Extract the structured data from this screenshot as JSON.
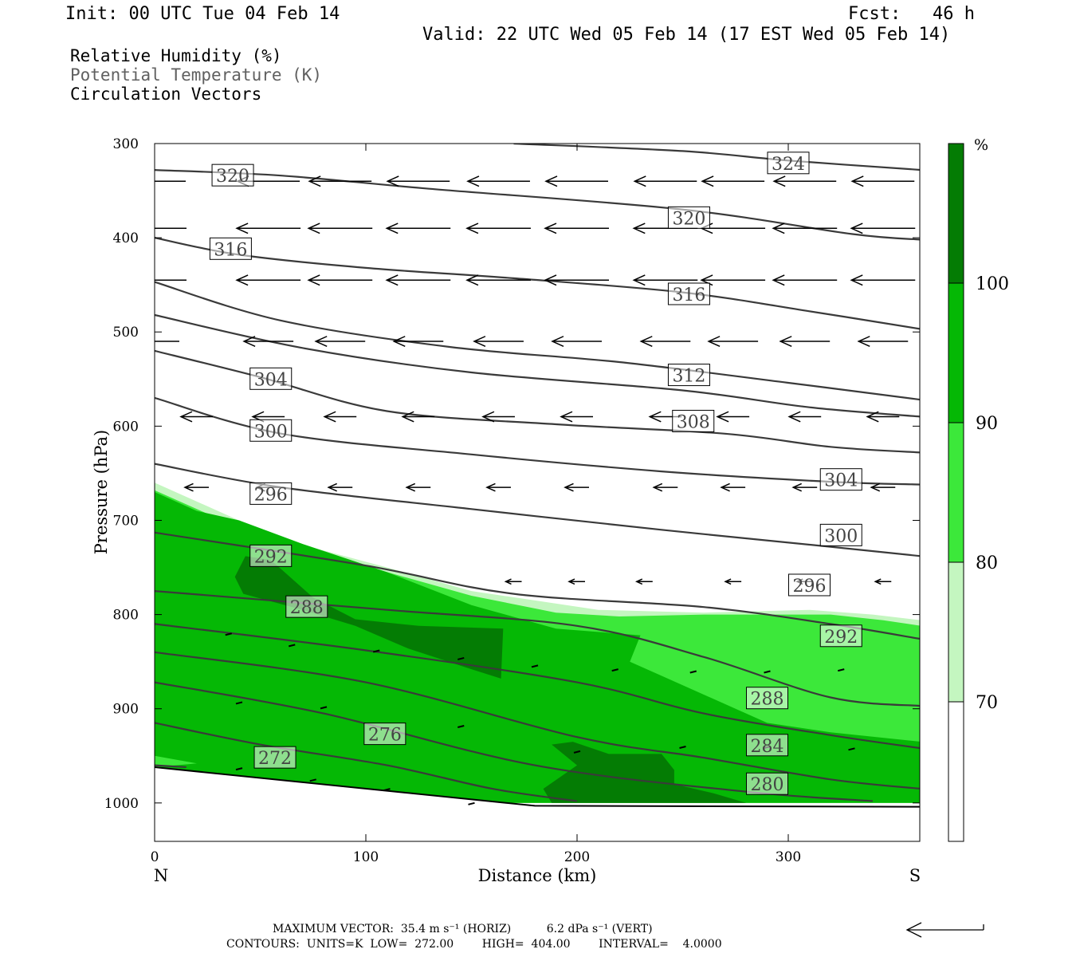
{
  "header": {
    "init": "Init: 00 UTC Tue 04 Feb 14",
    "fcst": "Fcst:   46 h",
    "valid": "Valid: 22 UTC Wed 05 Feb 14 (17 EST Wed 05 Feb 14)"
  },
  "legend": {
    "rh": "Relative Humidity (%)",
    "theta": "Potential Temperature (K)",
    "vectors": "Circulation Vectors"
  },
  "chart_data": {
    "type": "cross-section",
    "xlabel": "Distance (km)",
    "ylabel": "Pressure (hPa)",
    "xlim": [
      0,
      363
    ],
    "ylim": [
      1040,
      300
    ],
    "x_ticks": [
      0,
      100,
      200,
      300
    ],
    "y_ticks": [
      300,
      400,
      500,
      600,
      700,
      800,
      900,
      1000
    ],
    "left_end_label": "N",
    "right_end_label": "S",
    "colorbar": {
      "unit": "%",
      "ticks": [
        70,
        80,
        90,
        100
      ],
      "colors": [
        "#ffffff",
        "#c4f6c0",
        "#3ce83a",
        "#05b805",
        "#047c04"
      ]
    },
    "theta_contours": [
      {
        "label": "324",
        "points": [
          [
            170,
            300
          ],
          [
            250,
            308
          ],
          [
            300,
            318
          ],
          [
            363,
            328
          ]
        ]
      },
      {
        "label": "320",
        "points": [
          [
            0,
            328
          ],
          [
            60,
            334
          ],
          [
            130,
            348
          ],
          [
            250,
            370
          ],
          [
            330,
            396
          ],
          [
            363,
            402
          ]
        ]
      },
      {
        "label": "316",
        "points": [
          [
            0,
            400
          ],
          [
            40,
            418
          ],
          [
            100,
            432
          ],
          [
            170,
            443
          ],
          [
            250,
            458
          ],
          [
            310,
            478
          ],
          [
            363,
            497
          ]
        ]
      },
      {
        "label": "312",
        "points": [
          [
            0,
            447
          ],
          [
            60,
            488
          ],
          [
            140,
            516
          ],
          [
            220,
            532
          ],
          [
            300,
            554
          ],
          [
            363,
            572
          ]
        ]
      },
      {
        "label": "",
        "points": [
          [
            0,
            482
          ],
          [
            70,
            517
          ],
          [
            150,
            543
          ],
          [
            250,
            562
          ],
          [
            310,
            580
          ],
          [
            363,
            590
          ]
        ]
      },
      {
        "label": "308",
        "points": [
          [
            0,
            520
          ],
          [
            50,
            548
          ],
          [
            110,
            584
          ],
          [
            190,
            598
          ],
          [
            270,
            608
          ],
          [
            320,
            622
          ],
          [
            363,
            628
          ]
        ]
      },
      {
        "label": "304",
        "points": [
          [
            0,
            570
          ],
          [
            60,
            608
          ],
          [
            150,
            630
          ],
          [
            240,
            648
          ],
          [
            320,
            659
          ],
          [
            363,
            662
          ]
        ]
      },
      {
        "label": "300",
        "points": [
          [
            0,
            640
          ],
          [
            60,
            665
          ],
          [
            150,
            688
          ],
          [
            240,
            710
          ],
          [
            320,
            728
          ],
          [
            363,
            738
          ]
        ]
      },
      {
        "label": "296",
        "points": [
          [
            0,
            713
          ],
          [
            100,
            748
          ],
          [
            170,
            778
          ],
          [
            260,
            792
          ],
          [
            320,
            810
          ],
          [
            363,
            826
          ]
        ]
      },
      {
        "label": "292",
        "points": [
          [
            0,
            775
          ],
          [
            110,
            795
          ],
          [
            200,
            812
          ],
          [
            260,
            845
          ],
          [
            320,
            888
          ],
          [
            363,
            897
          ]
        ]
      },
      {
        "label": "288",
        "points": [
          [
            0,
            810
          ],
          [
            100,
            838
          ],
          [
            200,
            872
          ],
          [
            260,
            905
          ],
          [
            320,
            928
          ],
          [
            363,
            942
          ]
        ]
      },
      {
        "label": "284",
        "points": [
          [
            0,
            840
          ],
          [
            100,
            872
          ],
          [
            200,
            930
          ],
          [
            260,
            952
          ],
          [
            320,
            975
          ],
          [
            363,
            985
          ]
        ]
      },
      {
        "label": "280",
        "points": [
          [
            0,
            872
          ],
          [
            80,
            905
          ],
          [
            180,
            960
          ],
          [
            280,
            988
          ],
          [
            340,
            998
          ]
        ]
      },
      {
        "label": "276",
        "points": [
          [
            0,
            915
          ],
          [
            50,
            938
          ],
          [
            110,
            960
          ],
          [
            160,
            985
          ],
          [
            200,
            998
          ]
        ]
      },
      {
        "label": "272",
        "points": [
          [
            0,
            960
          ],
          [
            15,
            962
          ]
        ]
      }
    ],
    "theta_labels": [
      {
        "text": "324",
        "x": 300,
        "p": 321
      },
      {
        "text": "320",
        "x": 37,
        "p": 334
      },
      {
        "text": "320",
        "x": 253,
        "p": 379
      },
      {
        "text": "316",
        "x": 36,
        "p": 412
      },
      {
        "text": "316",
        "x": 253,
        "p": 460
      },
      {
        "text": "312",
        "x": 253,
        "p": 546
      },
      {
        "text": "308",
        "x": 255,
        "p": 595
      },
      {
        "text": "304",
        "x": 55,
        "p": 550
      },
      {
        "text": "304",
        "x": 325,
        "p": 657
      },
      {
        "text": "300",
        "x": 55,
        "p": 605
      },
      {
        "text": "300",
        "x": 325,
        "p": 716
      },
      {
        "text": "296",
        "x": 55,
        "p": 672
      },
      {
        "text": "296",
        "x": 310,
        "p": 769
      },
      {
        "text": "292",
        "x": 55,
        "p": 738
      },
      {
        "text": "292",
        "x": 325,
        "p": 823
      },
      {
        "text": "288",
        "x": 72,
        "p": 792
      },
      {
        "text": "288",
        "x": 290,
        "p": 889
      },
      {
        "text": "284",
        "x": 290,
        "p": 939
      },
      {
        "text": "280",
        "x": 290,
        "p": 980
      },
      {
        "text": "276",
        "x": 109,
        "p": 927
      },
      {
        "text": "272",
        "x": 57,
        "p": 952
      }
    ],
    "ground_surface": [
      [
        0,
        962
      ],
      [
        180,
        1003
      ],
      [
        363,
        1004
      ]
    ],
    "vectors_u": [
      {
        "p": 340,
        "x": [
          0,
          54,
          88,
          125,
          163,
          200,
          242,
          274,
          308,
          345
        ]
      },
      {
        "p": 390,
        "x": [
          0,
          54,
          88,
          125,
          163,
          200,
          242,
          274,
          308,
          345
        ]
      },
      {
        "p": 445,
        "x": [
          0,
          54,
          88,
          125,
          163,
          200,
          242,
          274,
          308,
          345
        ]
      },
      {
        "p": 510,
        "x": [
          0,
          54,
          88,
          125,
          163,
          200,
          242,
          274,
          308,
          345
        ]
      },
      {
        "p": 590,
        "x": [
          20,
          54,
          88,
          125,
          163,
          200,
          242,
          274,
          308,
          345
        ]
      },
      {
        "p": 665,
        "x": [
          20,
          54,
          88,
          125,
          163,
          200,
          242,
          274,
          308,
          345
        ]
      },
      {
        "p": 765,
        "x": [
          170,
          200,
          232,
          274,
          308,
          345
        ]
      }
    ]
  },
  "footer": {
    "max_vector": "MAXIMUM VECTOR:  35.4 m s⁻¹ (HORIZ)          6.2 dPa s⁻¹ (VERT)",
    "contours": "CONTOURS:  UNITS=K  LOW=  272.00        HIGH=  404.00        INTERVAL=    4.0000"
  }
}
